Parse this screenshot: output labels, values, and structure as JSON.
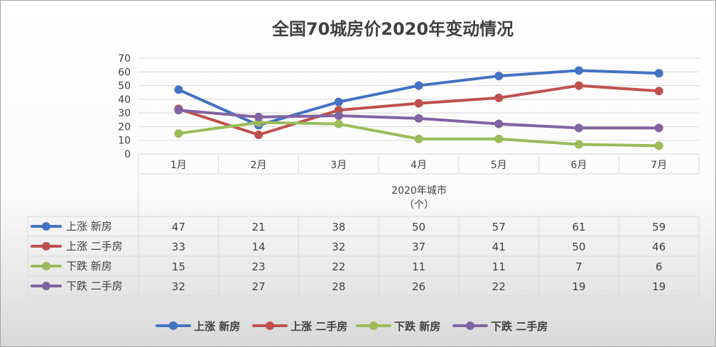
{
  "chart_data": {
    "type": "line",
    "title": "全国70城房价2020年变动情况",
    "categories": [
      "1月",
      "2月",
      "3月",
      "4月",
      "5月",
      "6月",
      "7月"
    ],
    "xlabel_line1": "2020年城市",
    "xlabel_line2": "（个）",
    "ylabel": "",
    "ylim": [
      0,
      70
    ],
    "yticks": [
      0,
      10,
      20,
      30,
      40,
      50,
      60,
      70
    ],
    "grid": true,
    "data_table": true,
    "legend_position": "bottom",
    "series": [
      {
        "name": "上涨 新房",
        "color": "#4472c4",
        "values": [
          47,
          21,
          38,
          50,
          57,
          61,
          59
        ]
      },
      {
        "name": "上涨 二手房",
        "color": "#c0504d",
        "values": [
          33,
          14,
          32,
          37,
          41,
          50,
          46
        ]
      },
      {
        "name": "下跌 新房",
        "color": "#9bbb59",
        "values": [
          15,
          23,
          22,
          11,
          11,
          7,
          6
        ]
      },
      {
        "name": "下跌 二手房",
        "color": "#8064a2",
        "values": [
          32,
          27,
          28,
          26,
          22,
          19,
          19
        ]
      }
    ]
  }
}
